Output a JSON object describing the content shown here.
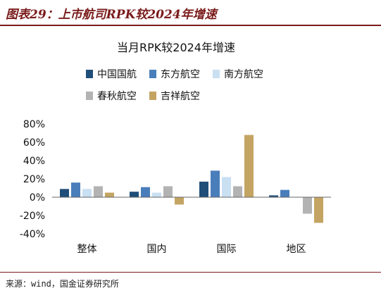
{
  "figure": {
    "title": "图表29：上市航司RPK较2024年增速",
    "source": "来源：wind，国金证券研究所"
  },
  "chart_data": {
    "type": "bar",
    "title": "当月RPK较2024年增速",
    "categories": [
      "整体",
      "国内",
      "国际",
      "地区"
    ],
    "series": [
      {
        "name": "中国国航",
        "color": "#1f4e79",
        "values": [
          9,
          6,
          17,
          2
        ]
      },
      {
        "name": "东方航空",
        "color": "#4a7ebb",
        "values": [
          16,
          11,
          29,
          8
        ]
      },
      {
        "name": "南方航空",
        "color": "#c9dff2",
        "values": [
          9,
          5,
          22,
          0
        ]
      },
      {
        "name": "春秋航空",
        "color": "#b3b3b3",
        "values": [
          12,
          12,
          12,
          -18
        ]
      },
      {
        "name": "吉祥航空",
        "color": "#c4a463",
        "values": [
          5,
          -8,
          68,
          -28
        ]
      }
    ],
    "yticks": [
      "80%",
      "60%",
      "40%",
      "20%",
      "0%",
      "-20%",
      "-40%"
    ],
    "ylim": [
      -40,
      80
    ],
    "legend_position": "top",
    "grid": false
  }
}
